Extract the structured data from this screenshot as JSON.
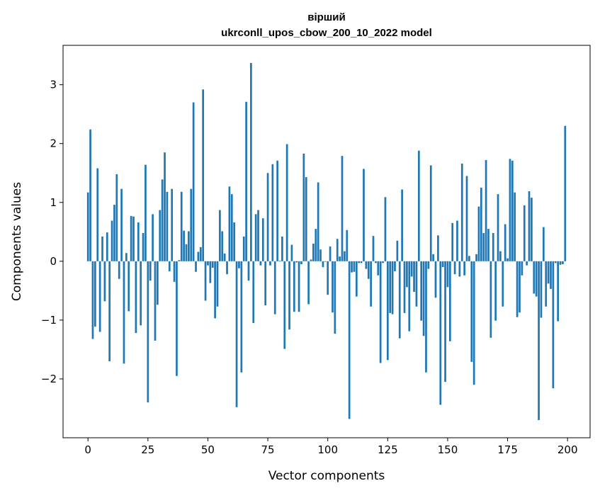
{
  "chart_data": {
    "type": "bar",
    "title_line1": "вірший",
    "title_line2": "ukrconll_upos_cbow_200_10_2022 model",
    "xlabel": "Vector components",
    "ylabel": "Components values",
    "xlim": [
      -10.4,
      209.4
    ],
    "ylim": [
      -3.0,
      3.67
    ],
    "xticks": [
      0,
      25,
      50,
      75,
      100,
      125,
      150,
      175,
      200
    ],
    "xtick_labels": [
      "0",
      "25",
      "50",
      "75",
      "100",
      "125",
      "150",
      "175",
      "200"
    ],
    "yticks": [
      -2,
      -1,
      0,
      1,
      2,
      3
    ],
    "ytick_labels": [
      "−2",
      "−1",
      "0",
      "1",
      "2",
      "3"
    ],
    "grid": false,
    "color": "#1f77b4",
    "values": [
      1.17,
      2.24,
      -1.32,
      -1.11,
      1.58,
      -1.2,
      0.42,
      -0.68,
      0.49,
      -1.7,
      0.69,
      0.96,
      1.48,
      -0.3,
      1.23,
      -1.74,
      0.14,
      -0.85,
      0.77,
      0.76,
      -1.22,
      0.66,
      -1.09,
      0.48,
      1.64,
      -2.4,
      -0.33,
      0.8,
      -1.35,
      -0.74,
      0.87,
      1.39,
      1.85,
      1.18,
      -0.17,
      1.23,
      -0.35,
      -1.95,
      0.02,
      1.18,
      0.52,
      0.29,
      0.51,
      1.23,
      2.7,
      -0.18,
      0.16,
      0.24,
      2.92,
      -0.67,
      -0.07,
      -0.37,
      -0.11,
      -0.97,
      -0.77,
      0.87,
      0.51,
      0.13,
      -0.22,
      1.27,
      1.14,
      0.66,
      -2.48,
      -0.12,
      -1.89,
      0.42,
      2.71,
      -0.33,
      3.37,
      -1.05,
      0.8,
      0.87,
      -0.07,
      0.73,
      -0.75,
      1.5,
      -0.07,
      1.65,
      -0.9,
      1.71,
      0.01,
      0.42,
      -1.49,
      1.99,
      -1.16,
      0.28,
      -0.86,
      -0.02,
      -0.86,
      -0.05,
      1.83,
      1.43,
      -0.73,
      0.03,
      0.3,
      0.55,
      1.34,
      0.2,
      -0.1,
      -0.01,
      -0.57,
      0.25,
      -0.87,
      -1.23,
      0.38,
      0.08,
      1.79,
      0.17,
      0.53,
      -2.68,
      -0.19,
      -0.18,
      -0.6,
      -0.03,
      -0.03,
      1.57,
      -0.13,
      -0.3,
      -0.77,
      0.43,
      -0.03,
      -0.24,
      -1.73,
      -0.03,
      1.09,
      -1.68,
      -0.88,
      -0.9,
      -0.17,
      0.35,
      -1.31,
      1.22,
      -0.88,
      -0.44,
      -1.19,
      -0.26,
      -0.52,
      -0.77,
      1.88,
      -1.01,
      -1.27,
      -1.89,
      -0.13,
      1.63,
      0.12,
      -0.62,
      0.44,
      -2.44,
      -0.1,
      -2.05,
      -0.44,
      -1.36,
      0.65,
      -0.22,
      0.69,
      -0.26,
      1.66,
      -0.24,
      1.45,
      0.09,
      -1.71,
      -2.1,
      0.12,
      0.93,
      1.25,
      0.48,
      1.72,
      0.55,
      -1.3,
      0.48,
      -1.01,
      1.14,
      0.17,
      -0.77,
      0.63,
      0.05,
      1.74,
      1.71,
      1.17,
      -0.95,
      -0.87,
      -0.24,
      0.95,
      -0.07,
      1.19,
      1.08,
      -0.55,
      -0.6,
      -2.7,
      -0.96,
      0.58,
      -0.77,
      -0.38,
      -0.47,
      -2.16,
      -0.03,
      -1.02,
      -0.06,
      -0.05,
      2.3
    ]
  }
}
